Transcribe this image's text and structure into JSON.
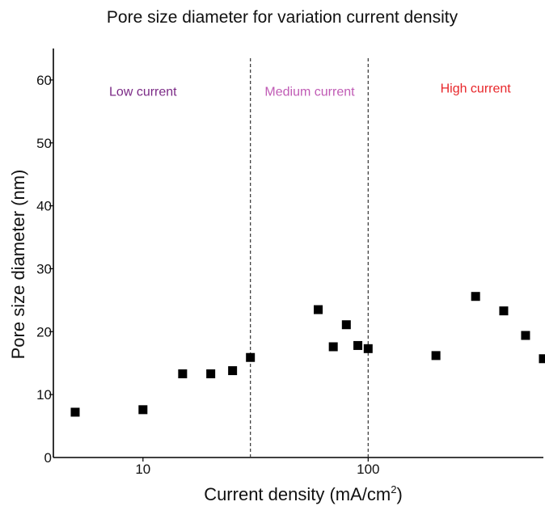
{
  "chart_data": {
    "type": "scatter",
    "title": "Pore size diameter for variation current density",
    "xlabel": "Current density (mA/cm",
    "xlabel_superscript": "2",
    "xlabel_suffix": ")",
    "ylabel": "Pore size diameter (nm)",
    "x_scale": "log",
    "xlim": [
      4,
      600
    ],
    "ylim": [
      0,
      65
    ],
    "x_ticks": [
      10,
      100
    ],
    "x_tick_labels": [
      "10",
      "100"
    ],
    "y_ticks": [
      0,
      10,
      20,
      30,
      40,
      50,
      60
    ],
    "y_tick_labels": [
      "0",
      "10",
      "20",
      "30",
      "40",
      "50",
      "60"
    ],
    "grid": false,
    "marker": "square",
    "marker_color": "#000000",
    "vertical_lines": [
      30,
      100
    ],
    "regions": [
      {
        "label": "Low current",
        "color": "#7b2a86",
        "x": 10,
        "y": 57.5
      },
      {
        "label": "Medium current",
        "color": "#c05bb5",
        "x": 55,
        "y": 57.5
      },
      {
        "label": "High current",
        "color": "#e8262a",
        "x": 300,
        "y": 58
      }
    ],
    "series": [
      {
        "points": [
          {
            "x": 5,
            "y": 7.2
          },
          {
            "x": 10,
            "y": 7.6
          },
          {
            "x": 15,
            "y": 13.3
          },
          {
            "x": 20,
            "y": 13.3
          },
          {
            "x": 25,
            "y": 13.8
          },
          {
            "x": 30,
            "y": 15.9
          },
          {
            "x": 60,
            "y": 23.5
          },
          {
            "x": 70,
            "y": 17.6
          },
          {
            "x": 80,
            "y": 21.1
          },
          {
            "x": 90,
            "y": 17.8
          },
          {
            "x": 100,
            "y": 17.3
          },
          {
            "x": 200,
            "y": 16.2
          },
          {
            "x": 300,
            "y": 25.6
          },
          {
            "x": 400,
            "y": 23.3
          },
          {
            "x": 500,
            "y": 19.4
          },
          {
            "x": 600,
            "y": 15.7
          }
        ]
      }
    ]
  }
}
